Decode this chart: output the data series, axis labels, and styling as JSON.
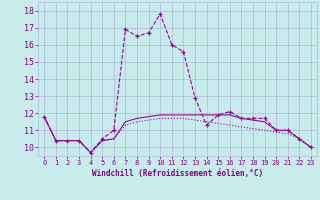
{
  "xlabel": "Windchill (Refroidissement éolien,°C)",
  "background_color": "#c8ecec",
  "grid_color": "#b0b8d8",
  "line_color": "#990099",
  "xlim": [
    -0.5,
    23.5
  ],
  "ylim": [
    9.5,
    18.5
  ],
  "xticks": [
    0,
    1,
    2,
    3,
    4,
    5,
    6,
    7,
    8,
    9,
    10,
    11,
    12,
    13,
    14,
    15,
    16,
    17,
    18,
    19,
    20,
    21,
    22,
    23
  ],
  "yticks": [
    10,
    11,
    12,
    13,
    14,
    15,
    16,
    17,
    18
  ],
  "series1_x": [
    0,
    1,
    2,
    3,
    4,
    5,
    6,
    7,
    8,
    9,
    10,
    11,
    12,
    13,
    14,
    15,
    16,
    17,
    18,
    19,
    20,
    21,
    22,
    23
  ],
  "series1_y": [
    11.8,
    10.4,
    10.4,
    10.4,
    9.7,
    10.5,
    11.0,
    16.9,
    16.5,
    16.7,
    17.8,
    16.0,
    15.6,
    12.9,
    11.3,
    11.9,
    12.1,
    11.7,
    11.7,
    11.7,
    11.0,
    11.0,
    10.5,
    10.0
  ],
  "series2_x": [
    0,
    1,
    2,
    3,
    4,
    5,
    6,
    7,
    8,
    9,
    10,
    11,
    12,
    13,
    14,
    15,
    16,
    17,
    18,
    19,
    20,
    21,
    22,
    23
  ],
  "series2_y": [
    11.8,
    10.4,
    10.4,
    10.4,
    9.7,
    10.4,
    10.5,
    11.5,
    11.7,
    11.8,
    11.9,
    11.9,
    11.9,
    11.9,
    11.9,
    11.9,
    11.9,
    11.7,
    11.6,
    11.5,
    11.0,
    11.0,
    10.5,
    10.0
  ],
  "series3_x": [
    0,
    1,
    2,
    3,
    4,
    5,
    6,
    7,
    8,
    9,
    10,
    11,
    12,
    13,
    14,
    15,
    16,
    17,
    18,
    19,
    20,
    21,
    22,
    23
  ],
  "series3_y": [
    11.8,
    10.4,
    10.4,
    10.4,
    9.7,
    10.4,
    10.5,
    11.3,
    11.5,
    11.6,
    11.7,
    11.7,
    11.7,
    11.6,
    11.5,
    11.4,
    11.3,
    11.2,
    11.1,
    11.0,
    10.9,
    10.8,
    10.5,
    10.0
  ]
}
